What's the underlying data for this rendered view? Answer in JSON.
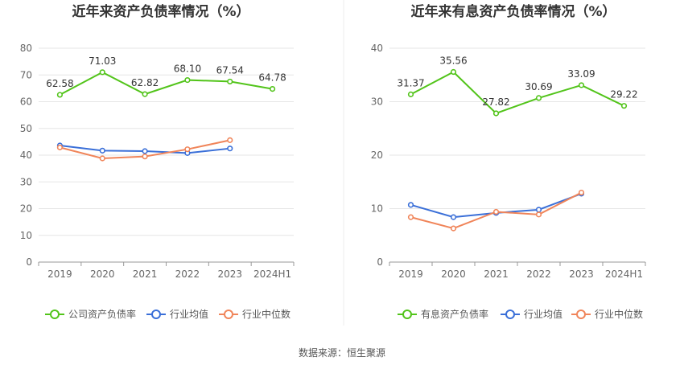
{
  "source_text": "数据来源：恒生聚源",
  "chart_data": [
    {
      "type": "line",
      "title": "近年来资产负债率情况（%）",
      "categories": [
        "2019",
        "2020",
        "2021",
        "2022",
        "2023",
        "2024H1"
      ],
      "ylim": [
        0,
        80
      ],
      "yticks": [
        0,
        10,
        20,
        30,
        40,
        50,
        60,
        70,
        80
      ],
      "grid": true,
      "legend_position": "bottom",
      "series": [
        {
          "name": "公司资产负债率",
          "color": "#52c41a",
          "values": [
            62.58,
            71.03,
            62.82,
            68.1,
            67.54,
            64.78
          ],
          "labels": [
            "62.58",
            "71.03",
            "62.82",
            "68.10",
            "67.54",
            "64.78"
          ]
        },
        {
          "name": "行业均值",
          "color": "#3a6fd8",
          "values": [
            43.6,
            41.7,
            41.5,
            40.8,
            42.5,
            null
          ]
        },
        {
          "name": "行业中位数",
          "color": "#f0855a",
          "values": [
            42.9,
            38.8,
            39.5,
            42.2,
            45.6,
            null
          ]
        }
      ]
    },
    {
      "type": "line",
      "title": "近年来有息资产负债率情况（%）",
      "categories": [
        "2019",
        "2020",
        "2021",
        "2022",
        "2023",
        "2024H1"
      ],
      "ylim": [
        0,
        40
      ],
      "yticks": [
        0,
        10,
        20,
        30,
        40
      ],
      "grid": true,
      "legend_position": "bottom",
      "series": [
        {
          "name": "有息资产负债率",
          "color": "#52c41a",
          "values": [
            31.37,
            35.56,
            27.82,
            30.69,
            33.09,
            29.22
          ],
          "labels": [
            "31.37",
            "35.56",
            "27.82",
            "30.69",
            "33.09",
            "29.22"
          ]
        },
        {
          "name": "行业均值",
          "color": "#3a6fd8",
          "values": [
            10.7,
            8.4,
            9.2,
            9.8,
            12.8,
            null
          ]
        },
        {
          "name": "行业中位数",
          "color": "#f0855a",
          "values": [
            8.4,
            6.3,
            9.4,
            8.9,
            13.0,
            null
          ]
        }
      ]
    }
  ]
}
